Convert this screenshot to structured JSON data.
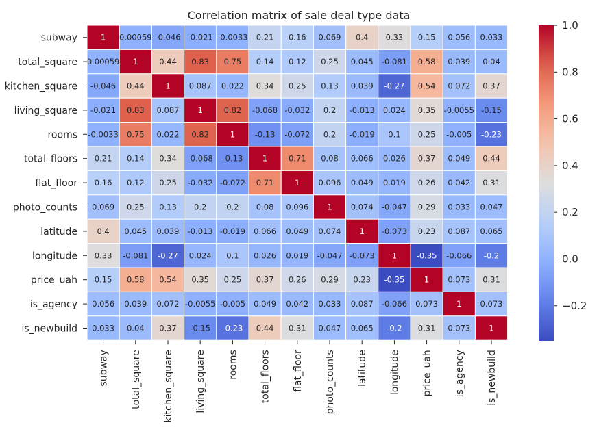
{
  "chart_data": {
    "type": "heatmap",
    "title": "Correlation matrix of sale deal type data",
    "xlabel": "",
    "ylabel": "",
    "labels": [
      "subway",
      "total_square",
      "kitchen_square",
      "living_square",
      "rooms",
      "total_floors",
      "flat_floor",
      "photo_counts",
      "latitude",
      "longitude",
      "price_uah",
      "is_agency",
      "is_newbuild"
    ],
    "values": [
      [
        1,
        0.00059,
        -0.046,
        -0.021,
        -0.0033,
        0.21,
        0.16,
        0.069,
        0.4,
        0.33,
        0.15,
        0.056,
        0.033
      ],
      [
        0.00059,
        1,
        0.44,
        0.83,
        0.75,
        0.14,
        0.12,
        0.25,
        0.045,
        -0.081,
        0.58,
        0.039,
        0.04
      ],
      [
        -0.046,
        0.44,
        1,
        0.087,
        0.022,
        0.34,
        0.25,
        0.13,
        0.039,
        -0.27,
        0.54,
        0.072,
        0.37
      ],
      [
        -0.021,
        0.83,
        0.087,
        1,
        0.82,
        -0.068,
        -0.032,
        0.2,
        -0.013,
        0.024,
        0.35,
        -0.0055,
        -0.15
      ],
      [
        -0.0033,
        0.75,
        0.022,
        0.82,
        1,
        -0.13,
        -0.072,
        0.2,
        -0.019,
        0.1,
        0.25,
        -0.005,
        -0.23
      ],
      [
        0.21,
        0.14,
        0.34,
        -0.068,
        -0.13,
        1,
        0.71,
        0.08,
        0.066,
        0.026,
        0.37,
        0.049,
        0.44
      ],
      [
        0.16,
        0.12,
        0.25,
        -0.032,
        -0.072,
        0.71,
        1,
        0.096,
        0.049,
        0.019,
        0.26,
        0.042,
        0.31
      ],
      [
        0.069,
        0.25,
        0.13,
        0.2,
        0.2,
        0.08,
        0.096,
        1,
        0.074,
        -0.047,
        0.29,
        0.033,
        0.047
      ],
      [
        0.4,
        0.045,
        0.039,
        -0.013,
        -0.019,
        0.066,
        0.049,
        0.074,
        1,
        -0.073,
        0.23,
        0.087,
        0.065
      ],
      [
        0.33,
        -0.081,
        -0.27,
        0.024,
        0.1,
        0.026,
        0.019,
        -0.047,
        -0.073,
        1,
        -0.35,
        -0.066,
        -0.2
      ],
      [
        0.15,
        0.58,
        0.54,
        0.35,
        0.25,
        0.37,
        0.26,
        0.29,
        0.23,
        -0.35,
        1,
        0.073,
        0.31
      ],
      [
        0.056,
        0.039,
        0.072,
        -0.0055,
        -0.005,
        0.049,
        0.042,
        0.033,
        0.087,
        -0.066,
        0.073,
        1,
        0.073
      ],
      [
        0.033,
        0.04,
        0.37,
        -0.15,
        -0.23,
        0.44,
        0.31,
        0.047,
        0.065,
        -0.2,
        0.31,
        0.073,
        1
      ]
    ],
    "colormap": "coolwarm",
    "vmin": -0.35,
    "vmax": 1.0,
    "colorbar_ticks": [
      1.0,
      0.8,
      0.6,
      0.4,
      0.2,
      0.0,
      -0.2
    ],
    "colorbar_tick_labels": [
      "1.0",
      "0.8",
      "0.6",
      "0.4",
      "0.2",
      "0.0",
      "−0.2"
    ],
    "colorbar_position": "right",
    "grid": false
  }
}
